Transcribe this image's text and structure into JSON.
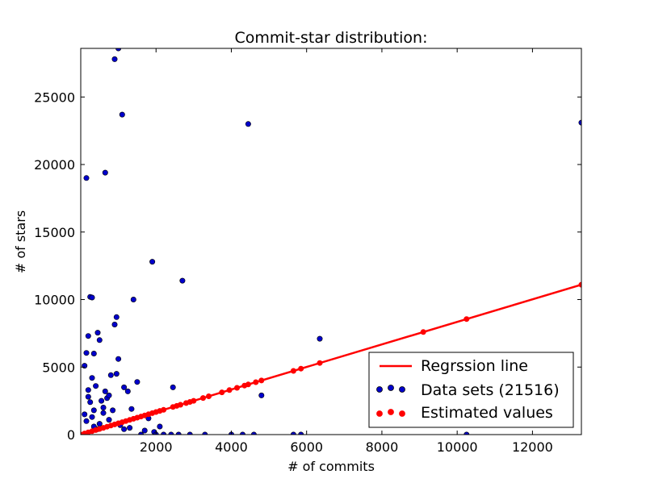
{
  "chart_data": {
    "type": "scatter",
    "title": "Commit-star distribution:",
    "xlabel": "# of commits",
    "ylabel": "# of stars",
    "xlim": [
      0,
      13300
    ],
    "ylim": [
      0,
      28600
    ],
    "grid": false,
    "legend_position": "bottom-right",
    "x_ticks": [
      2000,
      4000,
      6000,
      8000,
      10000,
      12000
    ],
    "y_ticks": [
      0,
      5000,
      10000,
      15000,
      20000,
      25000
    ],
    "colors": {
      "data_points": "#0000cc",
      "estimated_points": "#ff0000",
      "regression_line": "#ff0000"
    },
    "series": [
      {
        "name": "Regrssion line",
        "kind": "line",
        "x": [
          0,
          13300
        ],
        "y": [
          0,
          11100
        ]
      },
      {
        "name": "Data sets (21516)",
        "kind": "scatter",
        "x": [
          900,
          1000,
          1100,
          4450,
          13300,
          150,
          200,
          650,
          1900,
          2700,
          250,
          300,
          1400,
          950,
          900,
          150,
          450,
          500,
          350,
          100,
          1000,
          6350,
          1500,
          950,
          800,
          200,
          1150,
          1250,
          4800,
          650,
          2450,
          300,
          400,
          200,
          700,
          750,
          550,
          250,
          600,
          350,
          1350,
          1800,
          2100,
          1950,
          1150,
          2000,
          1600,
          2200,
          2600,
          2900,
          3300,
          4000,
          4300,
          4600,
          5650,
          5850,
          10250,
          100,
          150,
          300,
          500,
          750,
          1050,
          1300,
          1700,
          2400,
          350,
          450,
          600,
          850
        ],
        "y": [
          27800,
          28600,
          23700,
          23000,
          23100,
          19000,
          7300,
          19400,
          12800,
          11400,
          10200,
          10150,
          10000,
          8700,
          8150,
          6050,
          7550,
          7000,
          6000,
          5100,
          5600,
          7100,
          3900,
          4500,
          4400,
          3300,
          3500,
          3200,
          2900,
          3200,
          3500,
          4200,
          3600,
          2800,
          2700,
          2900,
          2500,
          2400,
          2000,
          1800,
          1900,
          1200,
          600,
          200,
          400,
          0,
          0,
          0,
          0,
          0,
          0,
          0,
          0,
          0,
          0,
          0,
          0,
          1500,
          1000,
          1300,
          800,
          1100,
          700,
          500,
          300,
          0,
          600,
          400,
          1600,
          1800
        ]
      },
      {
        "name": "Estimated values",
        "kind": "scatter",
        "x": [
          0,
          100,
          200,
          300,
          400,
          500,
          600,
          700,
          800,
          900,
          1000,
          1100,
          1200,
          1300,
          1400,
          1500,
          1600,
          1700,
          1800,
          1900,
          2000,
          2100,
          2200,
          2450,
          2550,
          2650,
          2800,
          2900,
          3000,
          3250,
          3400,
          3750,
          3950,
          4150,
          4350,
          4450,
          4650,
          4800,
          5650,
          5850,
          6350,
          9100,
          10250,
          13300
        ],
        "y": [
          0,
          83,
          167,
          250,
          334,
          417,
          501,
          584,
          668,
          751,
          835,
          918,
          1002,
          1085,
          1168,
          1252,
          1335,
          1419,
          1502,
          1586,
          1669,
          1753,
          1836,
          2045,
          2128,
          2212,
          2337,
          2420,
          2504,
          2712,
          2838,
          3130,
          3297,
          3464,
          3631,
          3714,
          3881,
          4006,
          4716,
          4883,
          5300,
          7595,
          8555,
          11100
        ]
      }
    ]
  }
}
